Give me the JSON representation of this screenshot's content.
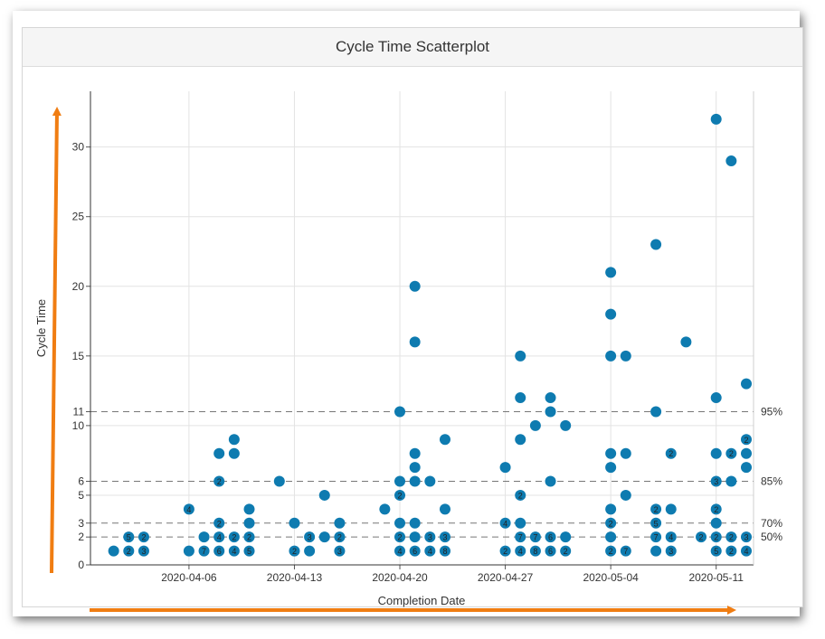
{
  "panel": {
    "title": "Cycle Time Scatterplot"
  },
  "chart_data": {
    "type": "scatter",
    "title": "Cycle Time Scatterplot",
    "xlabel": "Completion Date",
    "ylabel": "Cycle Time",
    "ylim": [
      0,
      34
    ],
    "xlim": [
      "2020-03-31",
      "2020-05-13"
    ],
    "grid": true,
    "y_ticks": [
      0,
      2,
      3,
      5,
      6,
      10,
      11,
      15,
      20,
      25,
      30
    ],
    "x_ticks": [
      "2020-04-06",
      "2020-04-13",
      "2020-04-20",
      "2020-04-27",
      "2020-05-04",
      "2020-05-11"
    ],
    "percentiles": [
      {
        "label": "95%",
        "value": 11
      },
      {
        "label": "85%",
        "value": 6
      },
      {
        "label": "70%",
        "value": 3
      },
      {
        "label": "50%",
        "value": 2
      }
    ],
    "colors": {
      "point": "#0e7bb0",
      "point_label": "#222222",
      "annotation_arrow": "#f07d12"
    },
    "points": [
      {
        "x": "2020-04-01",
        "y": 1
      },
      {
        "x": "2020-04-02",
        "y": 1,
        "count": "2"
      },
      {
        "x": "2020-04-02",
        "y": 2,
        "count": "5"
      },
      {
        "x": "2020-04-03",
        "y": 1,
        "count": "3"
      },
      {
        "x": "2020-04-03",
        "y": 2,
        "count": "2"
      },
      {
        "x": "2020-04-06",
        "y": 1
      },
      {
        "x": "2020-04-06",
        "y": 4,
        "count": "4"
      },
      {
        "x": "2020-04-07",
        "y": 1,
        "count": "7"
      },
      {
        "x": "2020-04-07",
        "y": 2
      },
      {
        "x": "2020-04-08",
        "y": 1,
        "count": "6"
      },
      {
        "x": "2020-04-08",
        "y": 2,
        "count": "4"
      },
      {
        "x": "2020-04-08",
        "y": 3,
        "count": "2"
      },
      {
        "x": "2020-04-08",
        "y": 6,
        "count": "2"
      },
      {
        "x": "2020-04-08",
        "y": 8
      },
      {
        "x": "2020-04-09",
        "y": 1,
        "count": "4"
      },
      {
        "x": "2020-04-09",
        "y": 2,
        "count": "2"
      },
      {
        "x": "2020-04-09",
        "y": 8
      },
      {
        "x": "2020-04-09",
        "y": 9
      },
      {
        "x": "2020-04-10",
        "y": 1,
        "count": "5"
      },
      {
        "x": "2020-04-10",
        "y": 2,
        "count": "2"
      },
      {
        "x": "2020-04-10",
        "y": 3
      },
      {
        "x": "2020-04-10",
        "y": 4
      },
      {
        "x": "2020-04-12",
        "y": 6
      },
      {
        "x": "2020-04-13",
        "y": 1,
        "count": "2"
      },
      {
        "x": "2020-04-13",
        "y": 3
      },
      {
        "x": "2020-04-14",
        "y": 1
      },
      {
        "x": "2020-04-14",
        "y": 2,
        "count": "3"
      },
      {
        "x": "2020-04-15",
        "y": 2
      },
      {
        "x": "2020-04-15",
        "y": 5
      },
      {
        "x": "2020-04-16",
        "y": 1,
        "count": "3"
      },
      {
        "x": "2020-04-16",
        "y": 2,
        "count": "2"
      },
      {
        "x": "2020-04-16",
        "y": 3
      },
      {
        "x": "2020-04-19",
        "y": 4
      },
      {
        "x": "2020-04-20",
        "y": 1,
        "count": "4"
      },
      {
        "x": "2020-04-20",
        "y": 2,
        "count": "2"
      },
      {
        "x": "2020-04-20",
        "y": 3
      },
      {
        "x": "2020-04-20",
        "y": 5,
        "count": "2"
      },
      {
        "x": "2020-04-20",
        "y": 6
      },
      {
        "x": "2020-04-20",
        "y": 11
      },
      {
        "x": "2020-04-21",
        "y": 1,
        "count": "6"
      },
      {
        "x": "2020-04-21",
        "y": 2
      },
      {
        "x": "2020-04-21",
        "y": 3
      },
      {
        "x": "2020-04-21",
        "y": 6
      },
      {
        "x": "2020-04-21",
        "y": 7
      },
      {
        "x": "2020-04-21",
        "y": 8
      },
      {
        "x": "2020-04-21",
        "y": 16
      },
      {
        "x": "2020-04-21",
        "y": 20
      },
      {
        "x": "2020-04-22",
        "y": 1,
        "count": "4"
      },
      {
        "x": "2020-04-22",
        "y": 2,
        "count": "3"
      },
      {
        "x": "2020-04-22",
        "y": 6
      },
      {
        "x": "2020-04-23",
        "y": 1,
        "count": "8"
      },
      {
        "x": "2020-04-23",
        "y": 2,
        "count": "3"
      },
      {
        "x": "2020-04-23",
        "y": 4
      },
      {
        "x": "2020-04-23",
        "y": 9
      },
      {
        "x": "2020-04-27",
        "y": 1,
        "count": "2"
      },
      {
        "x": "2020-04-27",
        "y": 3,
        "count": "4"
      },
      {
        "x": "2020-04-27",
        "y": 7
      },
      {
        "x": "2020-04-28",
        "y": 1,
        "count": "4"
      },
      {
        "x": "2020-04-28",
        "y": 2,
        "count": "7"
      },
      {
        "x": "2020-04-28",
        "y": 3
      },
      {
        "x": "2020-04-28",
        "y": 5,
        "count": "2"
      },
      {
        "x": "2020-04-28",
        "y": 9
      },
      {
        "x": "2020-04-28",
        "y": 12
      },
      {
        "x": "2020-04-28",
        "y": 15
      },
      {
        "x": "2020-04-29",
        "y": 1,
        "count": "8"
      },
      {
        "x": "2020-04-29",
        "y": 2,
        "count": "7"
      },
      {
        "x": "2020-04-29",
        "y": 10
      },
      {
        "x": "2020-04-30",
        "y": 1,
        "count": "6"
      },
      {
        "x": "2020-04-30",
        "y": 2,
        "count": "6"
      },
      {
        "x": "2020-04-30",
        "y": 6
      },
      {
        "x": "2020-04-30",
        "y": 11
      },
      {
        "x": "2020-04-30",
        "y": 12
      },
      {
        "x": "2020-05-01",
        "y": 1,
        "count": "2"
      },
      {
        "x": "2020-05-01",
        "y": 2
      },
      {
        "x": "2020-05-01",
        "y": 10
      },
      {
        "x": "2020-05-04",
        "y": 1,
        "count": "2"
      },
      {
        "x": "2020-05-04",
        "y": 2
      },
      {
        "x": "2020-05-04",
        "y": 3,
        "count": "2"
      },
      {
        "x": "2020-05-04",
        "y": 4
      },
      {
        "x": "2020-05-04",
        "y": 7
      },
      {
        "x": "2020-05-04",
        "y": 8
      },
      {
        "x": "2020-05-04",
        "y": 15
      },
      {
        "x": "2020-05-04",
        "y": 18
      },
      {
        "x": "2020-05-04",
        "y": 21
      },
      {
        "x": "2020-05-05",
        "y": 1,
        "count": "7"
      },
      {
        "x": "2020-05-05",
        "y": 5
      },
      {
        "x": "2020-05-05",
        "y": 8
      },
      {
        "x": "2020-05-05",
        "y": 15
      },
      {
        "x": "2020-05-07",
        "y": 1
      },
      {
        "x": "2020-05-07",
        "y": 2,
        "count": "7"
      },
      {
        "x": "2020-05-07",
        "y": 3,
        "count": "5"
      },
      {
        "x": "2020-05-07",
        "y": 4,
        "count": "2"
      },
      {
        "x": "2020-05-07",
        "y": 11
      },
      {
        "x": "2020-05-07",
        "y": 23
      },
      {
        "x": "2020-05-08",
        "y": 1,
        "count": "3"
      },
      {
        "x": "2020-05-08",
        "y": 2,
        "count": "4"
      },
      {
        "x": "2020-05-08",
        "y": 4
      },
      {
        "x": "2020-05-08",
        "y": 8,
        "count": "2"
      },
      {
        "x": "2020-05-09",
        "y": 16
      },
      {
        "x": "2020-05-10",
        "y": 2,
        "count": "2"
      },
      {
        "x": "2020-05-11",
        "y": 1,
        "count": "5"
      },
      {
        "x": "2020-05-11",
        "y": 2,
        "count": "2"
      },
      {
        "x": "2020-05-11",
        "y": 3
      },
      {
        "x": "2020-05-11",
        "y": 4,
        "count": "2"
      },
      {
        "x": "2020-05-11",
        "y": 6,
        "count": "3"
      },
      {
        "x": "2020-05-11",
        "y": 8
      },
      {
        "x": "2020-05-11",
        "y": 12
      },
      {
        "x": "2020-05-11",
        "y": 32
      },
      {
        "x": "2020-05-12",
        "y": 1,
        "count": "2"
      },
      {
        "x": "2020-05-12",
        "y": 2,
        "count": "2"
      },
      {
        "x": "2020-05-12",
        "y": 6
      },
      {
        "x": "2020-05-12",
        "y": 8,
        "count": "2"
      },
      {
        "x": "2020-05-12",
        "y": 29
      },
      {
        "x": "2020-05-13",
        "y": 1,
        "count": "4"
      },
      {
        "x": "2020-05-13",
        "y": 2,
        "count": "3"
      },
      {
        "x": "2020-05-13",
        "y": 7
      },
      {
        "x": "2020-05-13",
        "y": 8
      },
      {
        "x": "2020-05-13",
        "y": 9,
        "count": "2"
      },
      {
        "x": "2020-05-13",
        "y": 13
      }
    ]
  }
}
